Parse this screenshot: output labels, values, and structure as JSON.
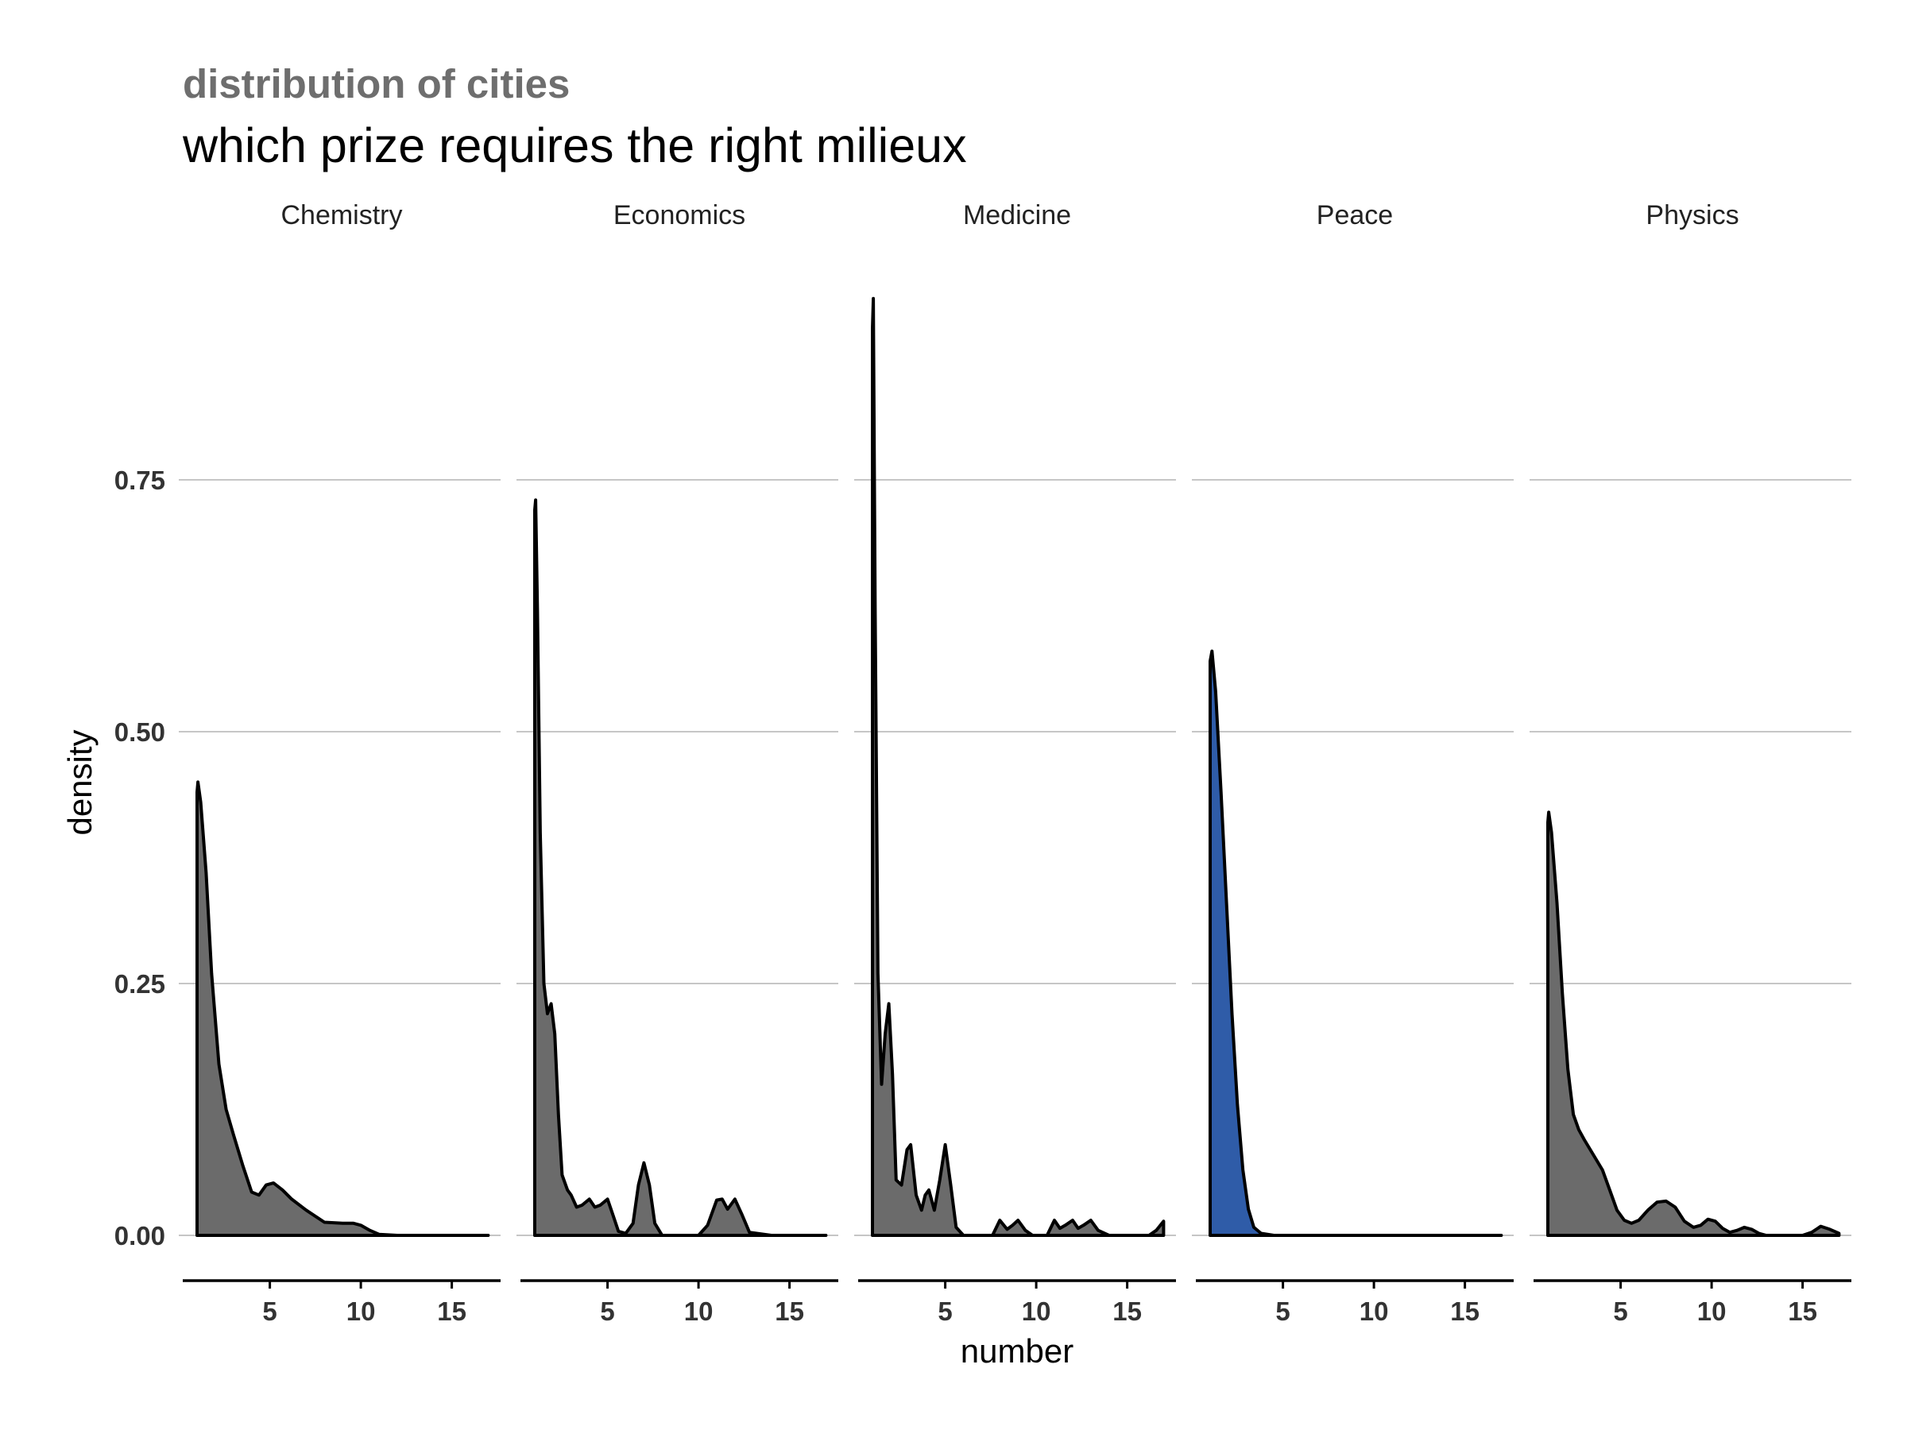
{
  "header": {
    "subtitle": "distribution of cities",
    "title": "which prize requires the right milieux"
  },
  "chart_data": {
    "type": "area",
    "chart_kind": "faceted density",
    "xlabel": "number",
    "ylabel": "density",
    "xlim": [
      0,
      17.5
    ],
    "ylim": [
      -0.03,
      0.95
    ],
    "x_ticks": [
      5,
      10,
      15
    ],
    "y_ticks": [
      0.0,
      0.25,
      0.5,
      0.75
    ],
    "y_tick_labels": [
      "0.00",
      "0.25",
      "0.50",
      "0.75"
    ],
    "grid": "horizontal major",
    "colors": {
      "default_fill": "#6b6b6b",
      "highlight_fill": "#2f5ca8",
      "line": "#000000",
      "grid": "#b3b3b3",
      "subtitle": "#6e6e6e"
    },
    "panels": [
      {
        "label": "Chemistry",
        "highlight": false,
        "x": [
          1,
          1.05,
          1.2,
          1.5,
          1.8,
          2.2,
          2.6,
          3,
          3.5,
          4,
          4.4,
          4.8,
          5.2,
          5.7,
          6.2,
          7,
          8,
          9,
          9.6,
          10,
          10.5,
          11,
          12,
          14,
          17
        ],
        "y": [
          0.44,
          0.45,
          0.43,
          0.36,
          0.26,
          0.17,
          0.125,
          0.1,
          0.07,
          0.043,
          0.04,
          0.05,
          0.052,
          0.045,
          0.036,
          0.025,
          0.013,
          0.012,
          0.012,
          0.01,
          0.005,
          0.001,
          0,
          0,
          0
        ]
      },
      {
        "label": "Economics",
        "highlight": false,
        "x": [
          1,
          1.05,
          1.15,
          1.3,
          1.5,
          1.7,
          1.9,
          2.1,
          2.3,
          2.5,
          2.8,
          3,
          3.3,
          3.6,
          4,
          4.3,
          4.6,
          5,
          5.3,
          5.6,
          6,
          6.4,
          6.7,
          7,
          7.3,
          7.6,
          8,
          9,
          10,
          10.5,
          11,
          11.3,
          11.6,
          12,
          12.4,
          12.8,
          14,
          17
        ],
        "y": [
          0.72,
          0.73,
          0.62,
          0.4,
          0.25,
          0.22,
          0.23,
          0.2,
          0.12,
          0.06,
          0.045,
          0.04,
          0.028,
          0.03,
          0.036,
          0.028,
          0.03,
          0.036,
          0.02,
          0.004,
          0.002,
          0.012,
          0.05,
          0.072,
          0.05,
          0.012,
          0,
          0,
          0,
          0.01,
          0.035,
          0.036,
          0.026,
          0.036,
          0.02,
          0.003,
          0,
          0
        ]
      },
      {
        "label": "Medicine",
        "highlight": false,
        "x": [
          1,
          1.05,
          1.15,
          1.3,
          1.5,
          1.7,
          1.9,
          2.1,
          2.3,
          2.6,
          2.9,
          3.1,
          3.4,
          3.7,
          3.9,
          4.1,
          4.4,
          4.7,
          5,
          5.3,
          5.6,
          6,
          7,
          7.6,
          8,
          8.4,
          8.7,
          9,
          9.4,
          9.8,
          10.6,
          11,
          11.3,
          11.6,
          12,
          12.3,
          12.6,
          13,
          13.4,
          14,
          16.2,
          16.6,
          17
        ],
        "y": [
          0.9,
          0.93,
          0.62,
          0.26,
          0.15,
          0.2,
          0.23,
          0.16,
          0.055,
          0.05,
          0.085,
          0.09,
          0.04,
          0.025,
          0.04,
          0.045,
          0.025,
          0.055,
          0.09,
          0.05,
          0.008,
          0,
          0,
          0,
          0.015,
          0.006,
          0.01,
          0.015,
          0.005,
          0,
          0,
          0.015,
          0.007,
          0.01,
          0.015,
          0.007,
          0.01,
          0.015,
          0.005,
          0,
          0,
          0.005,
          0.014
        ]
      },
      {
        "label": "Peace",
        "highlight": true,
        "x": [
          1,
          1.1,
          1.3,
          1.6,
          1.9,
          2.2,
          2.5,
          2.8,
          3.1,
          3.4,
          3.8,
          4.5,
          6,
          10,
          17
        ],
        "y": [
          0.57,
          0.58,
          0.54,
          0.44,
          0.33,
          0.22,
          0.13,
          0.065,
          0.026,
          0.008,
          0.002,
          0,
          0,
          0,
          0
        ]
      },
      {
        "label": "Physics",
        "highlight": false,
        "x": [
          1,
          1.05,
          1.2,
          1.5,
          1.8,
          2.1,
          2.4,
          2.7,
          3,
          3.5,
          4,
          4.4,
          4.8,
          5.2,
          5.6,
          6,
          6.5,
          7,
          7.5,
          8,
          8.5,
          9,
          9.4,
          9.8,
          10.2,
          10.6,
          11,
          11.4,
          11.8,
          12.2,
          12.6,
          13,
          14,
          15,
          15.5,
          16,
          16.5,
          17
        ],
        "y": [
          0.41,
          0.42,
          0.4,
          0.33,
          0.24,
          0.165,
          0.12,
          0.105,
          0.095,
          0.08,
          0.065,
          0.045,
          0.025,
          0.015,
          0.012,
          0.015,
          0.025,
          0.033,
          0.034,
          0.028,
          0.014,
          0.008,
          0.01,
          0.016,
          0.014,
          0.007,
          0.003,
          0.005,
          0.008,
          0.006,
          0.002,
          0,
          0,
          0,
          0.003,
          0.009,
          0.006,
          0.002
        ]
      }
    ]
  }
}
